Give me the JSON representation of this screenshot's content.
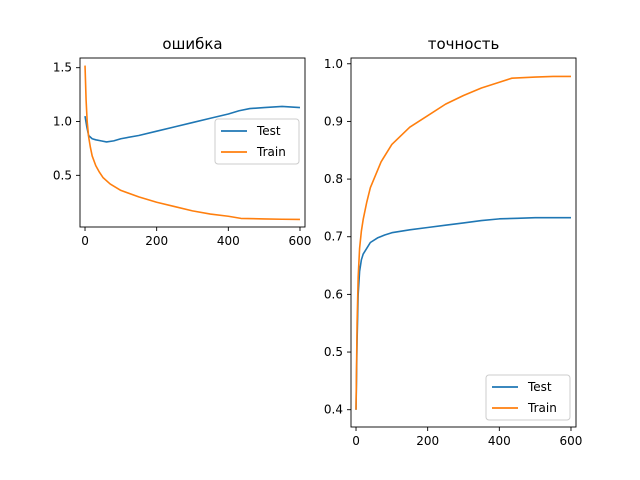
{
  "chart_data": [
    {
      "type": "line",
      "title": "ошибка",
      "xlabel": "",
      "ylabel": "",
      "xlim": [
        -14,
        614
      ],
      "ylim": [
        0.02,
        1.59
      ],
      "xticks": [
        0,
        200,
        400,
        600
      ],
      "yticks": [
        0.5,
        1.0,
        1.5
      ],
      "ytick_labels": [
        "0.5",
        "1.0",
        "1.5"
      ],
      "grid": false,
      "legend": "center-right",
      "colors": {
        "Test": "#1f77b4",
        "Train": "#ff7f0e"
      },
      "series": [
        {
          "name": "Test",
          "x": [
            0,
            5,
            10,
            20,
            30,
            45,
            60,
            80,
            100,
            150,
            200,
            250,
            300,
            350,
            400,
            430,
            460,
            500,
            550,
            600
          ],
          "y": [
            1.05,
            0.95,
            0.87,
            0.84,
            0.83,
            0.82,
            0.81,
            0.82,
            0.84,
            0.87,
            0.91,
            0.95,
            0.99,
            1.03,
            1.07,
            1.1,
            1.12,
            1.13,
            1.14,
            1.13
          ]
        },
        {
          "name": "Train",
          "x": [
            0,
            3,
            6,
            10,
            15,
            20,
            30,
            40,
            50,
            70,
            100,
            150,
            200,
            250,
            300,
            350,
            400,
            435,
            500,
            550,
            600
          ],
          "y": [
            1.52,
            1.2,
            1.0,
            0.86,
            0.76,
            0.68,
            0.59,
            0.53,
            0.48,
            0.42,
            0.36,
            0.3,
            0.25,
            0.21,
            0.17,
            0.14,
            0.12,
            0.1,
            0.095,
            0.092,
            0.09
          ]
        }
      ]
    },
    {
      "type": "line",
      "title": "точность",
      "xlabel": "",
      "ylabel": "",
      "xlim": [
        -14,
        614
      ],
      "ylim": [
        0.37,
        1.01
      ],
      "xticks": [
        0,
        200,
        400,
        600
      ],
      "yticks": [
        0.4,
        0.5,
        0.6,
        0.7,
        0.8,
        0.9,
        1.0
      ],
      "ytick_labels": [
        "0.4",
        "0.5",
        "0.6",
        "0.7",
        "0.8",
        "0.9",
        "1.0"
      ],
      "grid": false,
      "legend": "bottom-right",
      "colors": {
        "Test": "#1f77b4",
        "Train": "#ff7f0e"
      },
      "series": [
        {
          "name": "Test",
          "x": [
            0,
            3,
            6,
            10,
            15,
            20,
            30,
            40,
            60,
            80,
            100,
            150,
            200,
            250,
            300,
            350,
            400,
            450,
            500,
            550,
            600
          ],
          "y": [
            0.4,
            0.52,
            0.6,
            0.64,
            0.66,
            0.67,
            0.68,
            0.69,
            0.698,
            0.703,
            0.707,
            0.712,
            0.716,
            0.72,
            0.724,
            0.728,
            0.731,
            0.732,
            0.733,
            0.733,
            0.733
          ]
        },
        {
          "name": "Train",
          "x": [
            0,
            3,
            6,
            10,
            15,
            20,
            30,
            40,
            50,
            70,
            100,
            150,
            200,
            250,
            300,
            350,
            400,
            435,
            500,
            550,
            600
          ],
          "y": [
            0.4,
            0.55,
            0.63,
            0.68,
            0.71,
            0.73,
            0.76,
            0.785,
            0.8,
            0.83,
            0.86,
            0.89,
            0.91,
            0.93,
            0.945,
            0.958,
            0.968,
            0.975,
            0.977,
            0.978,
            0.978
          ]
        }
      ]
    }
  ]
}
